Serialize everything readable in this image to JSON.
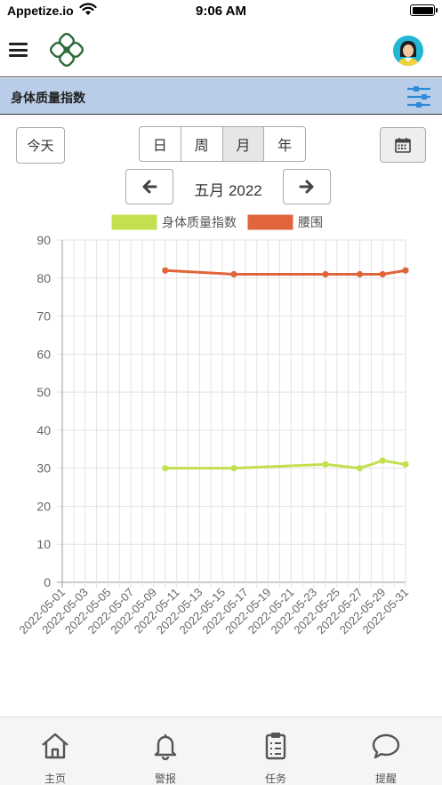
{
  "status": {
    "carrier": "Appetize.io",
    "time": "9:06 AM"
  },
  "header": {
    "menu_icon": "hamburger-menu-icon",
    "logo_icon": "clover-logo-icon",
    "avatar_icon": "user-avatar-icon"
  },
  "section": {
    "title": "身体质量指数",
    "filter_icon": "sliders-filter-icon"
  },
  "controls": {
    "today_label": "今天",
    "segments": [
      {
        "label": "日",
        "active": false
      },
      {
        "label": "周",
        "active": false
      },
      {
        "label": "月",
        "active": true
      },
      {
        "label": "年",
        "active": false
      }
    ],
    "period_label": "五月 2022",
    "calendar_icon": "calendar-icon",
    "prev_icon": "arrow-left-icon",
    "next_icon": "arrow-right-icon"
  },
  "chart_data": {
    "type": "line",
    "title": "",
    "xlabel": "",
    "ylabel": "",
    "ylim": [
      0,
      90
    ],
    "yticks": [
      0,
      10,
      20,
      30,
      40,
      50,
      60,
      70,
      80,
      90
    ],
    "xlim": [
      "2022-05-01",
      "2022-05-31"
    ],
    "xticks": [
      "2022-05-01",
      "2022-05-03",
      "2022-05-05",
      "2022-05-07",
      "2022-05-09",
      "2022-05-11",
      "2022-05-13",
      "2022-05-15",
      "2022-05-17",
      "2022-05-19",
      "2022-05-21",
      "2022-05-23",
      "2022-05-25",
      "2022-05-27",
      "2022-05-29",
      "2022-05-31"
    ],
    "grid": true,
    "legend_position": "top",
    "series": [
      {
        "name": "身体质量指数",
        "color": "#c2e04f",
        "x": [
          "2022-05-10",
          "2022-05-16",
          "2022-05-24",
          "2022-05-27",
          "2022-05-29",
          "2022-05-31"
        ],
        "y": [
          30,
          30,
          31,
          30,
          32,
          31
        ]
      },
      {
        "name": "腰围",
        "color": "#e0653a",
        "x": [
          "2022-05-10",
          "2022-05-16",
          "2022-05-24",
          "2022-05-27",
          "2022-05-29",
          "2022-05-31"
        ],
        "y": [
          82,
          81,
          81,
          81,
          81,
          82
        ]
      }
    ]
  },
  "tabs": [
    {
      "label": "主页",
      "icon": "home-icon"
    },
    {
      "label": "警报",
      "icon": "bell-icon"
    },
    {
      "label": "任务",
      "icon": "clipboard-icon"
    },
    {
      "label": "提醒",
      "icon": "chat-bubble-icon"
    }
  ]
}
